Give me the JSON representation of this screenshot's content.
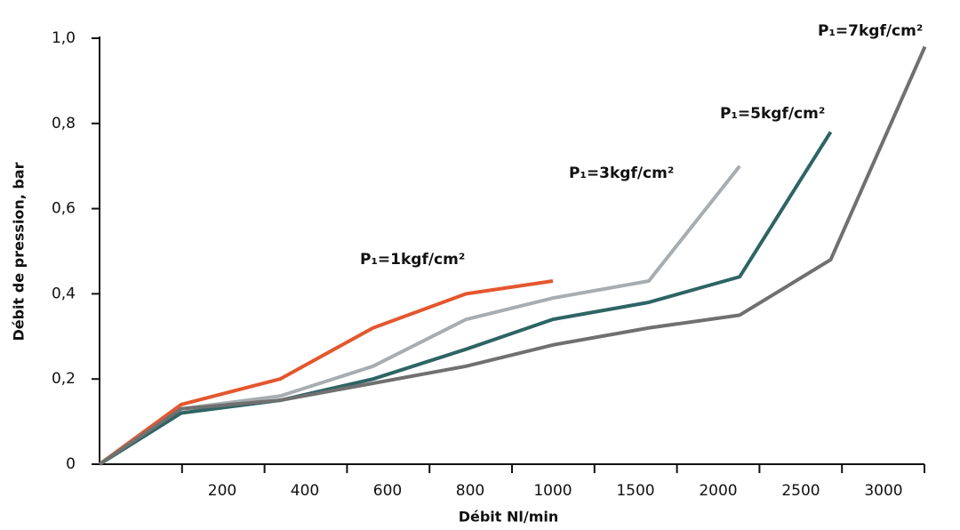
{
  "chart_data": {
    "type": "line",
    "x_label": "Débit Nl/min",
    "y_label": "Débit de pression, bar",
    "x": [
      0,
      133,
      340,
      565,
      790,
      1000,
      1580,
      2130,
      2680,
      3250
    ],
    "series": [
      {
        "name": "P₁=1kgf/cm²",
        "color": "#e4572e",
        "values": [
          0,
          0.14,
          0.2,
          0.32,
          0.4,
          0.43,
          null,
          null,
          null,
          null
        ]
      },
      {
        "name": "P₁=3kgf/cm²",
        "color": "#a7adb1",
        "values": [
          0,
          0.13,
          0.16,
          0.23,
          0.34,
          0.39,
          0.43,
          0.7,
          null,
          null
        ]
      },
      {
        "name": "P₁=5kgf/cm²",
        "color": "#2e6464",
        "values": [
          0,
          0.12,
          0.15,
          0.2,
          0.27,
          0.34,
          0.38,
          0.44,
          0.78,
          null
        ]
      },
      {
        "name": "P₁=7kgf/cm²",
        "color": "#707070",
        "values": [
          0,
          0.13,
          0.15,
          0.19,
          0.23,
          0.28,
          0.32,
          0.35,
          0.48,
          0.98
        ]
      }
    ],
    "xlim": [
      0,
      3260
    ],
    "xticks": [
      200,
      400,
      600,
      800,
      1000,
      1500,
      2000,
      2500,
      3000
    ],
    "ylim": [
      0,
      1
    ],
    "yticks": [
      0,
      {
        "value": 0.2,
        "label": "0,2"
      },
      {
        "value": 0.4,
        "label": "0,4"
      },
      {
        "value": 0.6,
        "label": "0,6"
      },
      {
        "value": 0.8,
        "label": "0,8"
      },
      {
        "value": 1,
        "label": "1,0"
      }
    ]
  }
}
